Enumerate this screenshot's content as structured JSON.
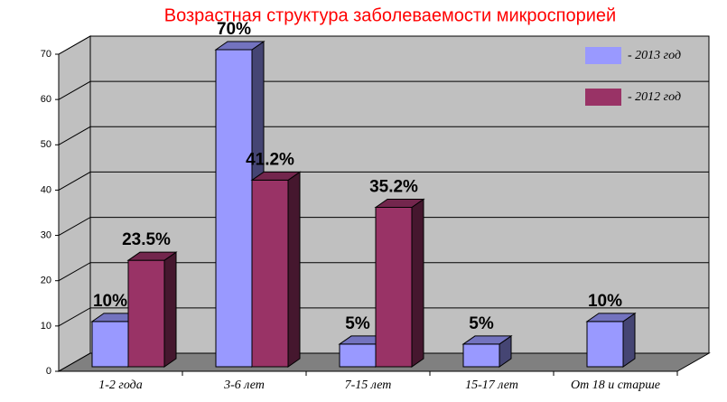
{
  "chart_data": {
    "type": "bar3d",
    "title": "Возрастная структура заболеваемости микроспорией",
    "categories": [
      "1-2 года",
      "3-6 лет",
      "7-15 лет",
      "15-17 лет",
      "От 18 и старше"
    ],
    "series": [
      {
        "name": "- 2013 год",
        "color": "#9999ff",
        "values": [
          10,
          70,
          5,
          5,
          10
        ],
        "value_labels": [
          "10%",
          "70%",
          "5%",
          "5%",
          "10%"
        ]
      },
      {
        "name": "- 2012 год",
        "color": "#993366",
        "values": [
          23.5,
          41.2,
          35.2,
          null,
          null
        ],
        "value_labels": [
          "23.5%",
          "41.2%",
          "35.2%",
          null,
          null
        ]
      }
    ],
    "ylim": [
      0,
      70
    ],
    "yticks": [
      0,
      10,
      20,
      30,
      40,
      50,
      60,
      70
    ],
    "grid": true,
    "legend": "top-right"
  }
}
